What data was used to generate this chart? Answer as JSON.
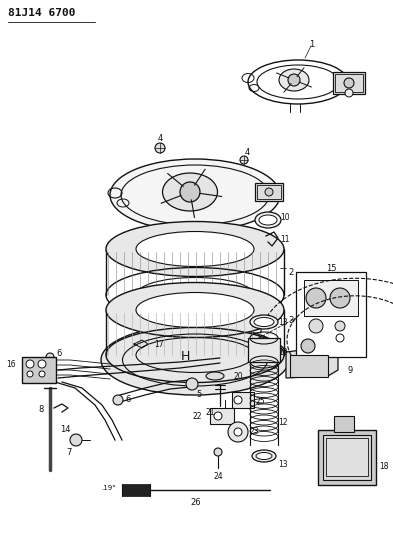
{
  "title": "81J14 6700",
  "bg_color": "#ffffff",
  "lc": "#111111",
  "fig_width": 3.93,
  "fig_height": 5.33,
  "dpi": 100
}
